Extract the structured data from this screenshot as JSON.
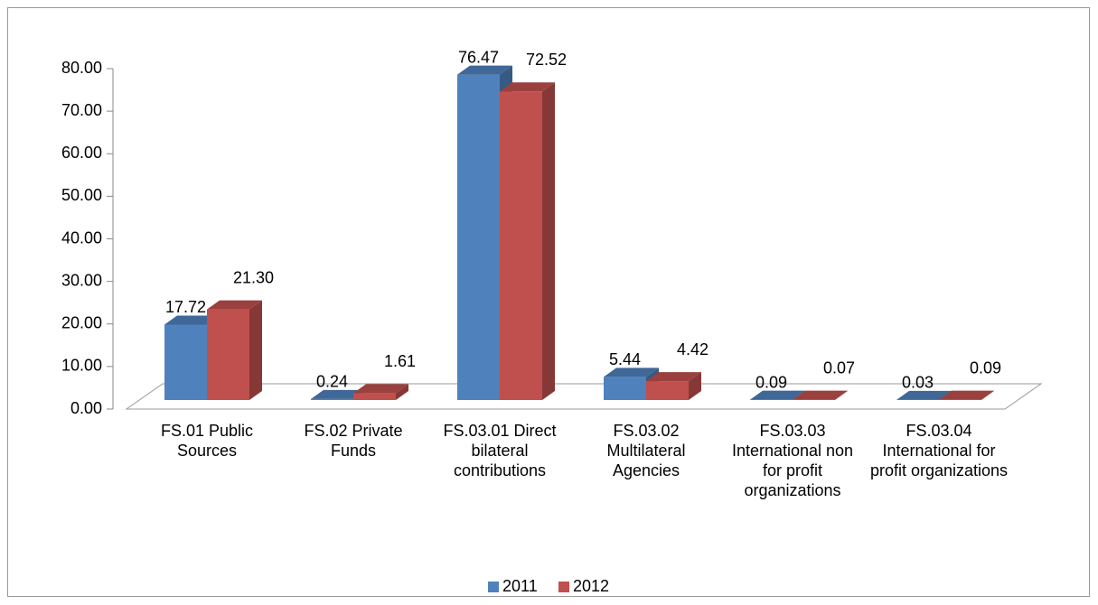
{
  "chart_data": {
    "type": "bar3d",
    "categories": [
      "FS.01 Public Sources",
      "FS.02 Private Funds",
      "FS.03.01 Direct bilateral contributions",
      "FS.03.02 Multilateral Agencies",
      "FS.03.03 International non for profit organizations",
      "FS.03.04 International for profit organizations"
    ],
    "series": [
      {
        "name": "2011",
        "color": "#4f81bd",
        "values": [
          17.72,
          0.24,
          76.47,
          5.44,
          0.09,
          0.03
        ],
        "value_labels": [
          "17.72",
          "0.24",
          "76.47",
          "5.44",
          "0.09",
          "0.03"
        ]
      },
      {
        "name": "2012",
        "color": "#c0504d",
        "values": [
          21.3,
          1.61,
          72.52,
          4.42,
          0.07,
          0.09
        ],
        "value_labels": [
          "21.30",
          "1.61",
          "72.52",
          "4.42",
          "0.07",
          "0.09"
        ]
      }
    ],
    "ylim": [
      0,
      80
    ],
    "yticks": [
      {
        "value": 0,
        "label": "0.00"
      },
      {
        "value": 10,
        "label": "10.00"
      },
      {
        "value": 20,
        "label": "20.00"
      },
      {
        "value": 30,
        "label": "30.00"
      },
      {
        "value": 40,
        "label": "40.00"
      },
      {
        "value": 50,
        "label": "50.00"
      },
      {
        "value": 60,
        "label": "60.00"
      },
      {
        "value": 70,
        "label": "70.00"
      },
      {
        "value": 80,
        "label": "80.00"
      }
    ],
    "legend": "bottom"
  }
}
